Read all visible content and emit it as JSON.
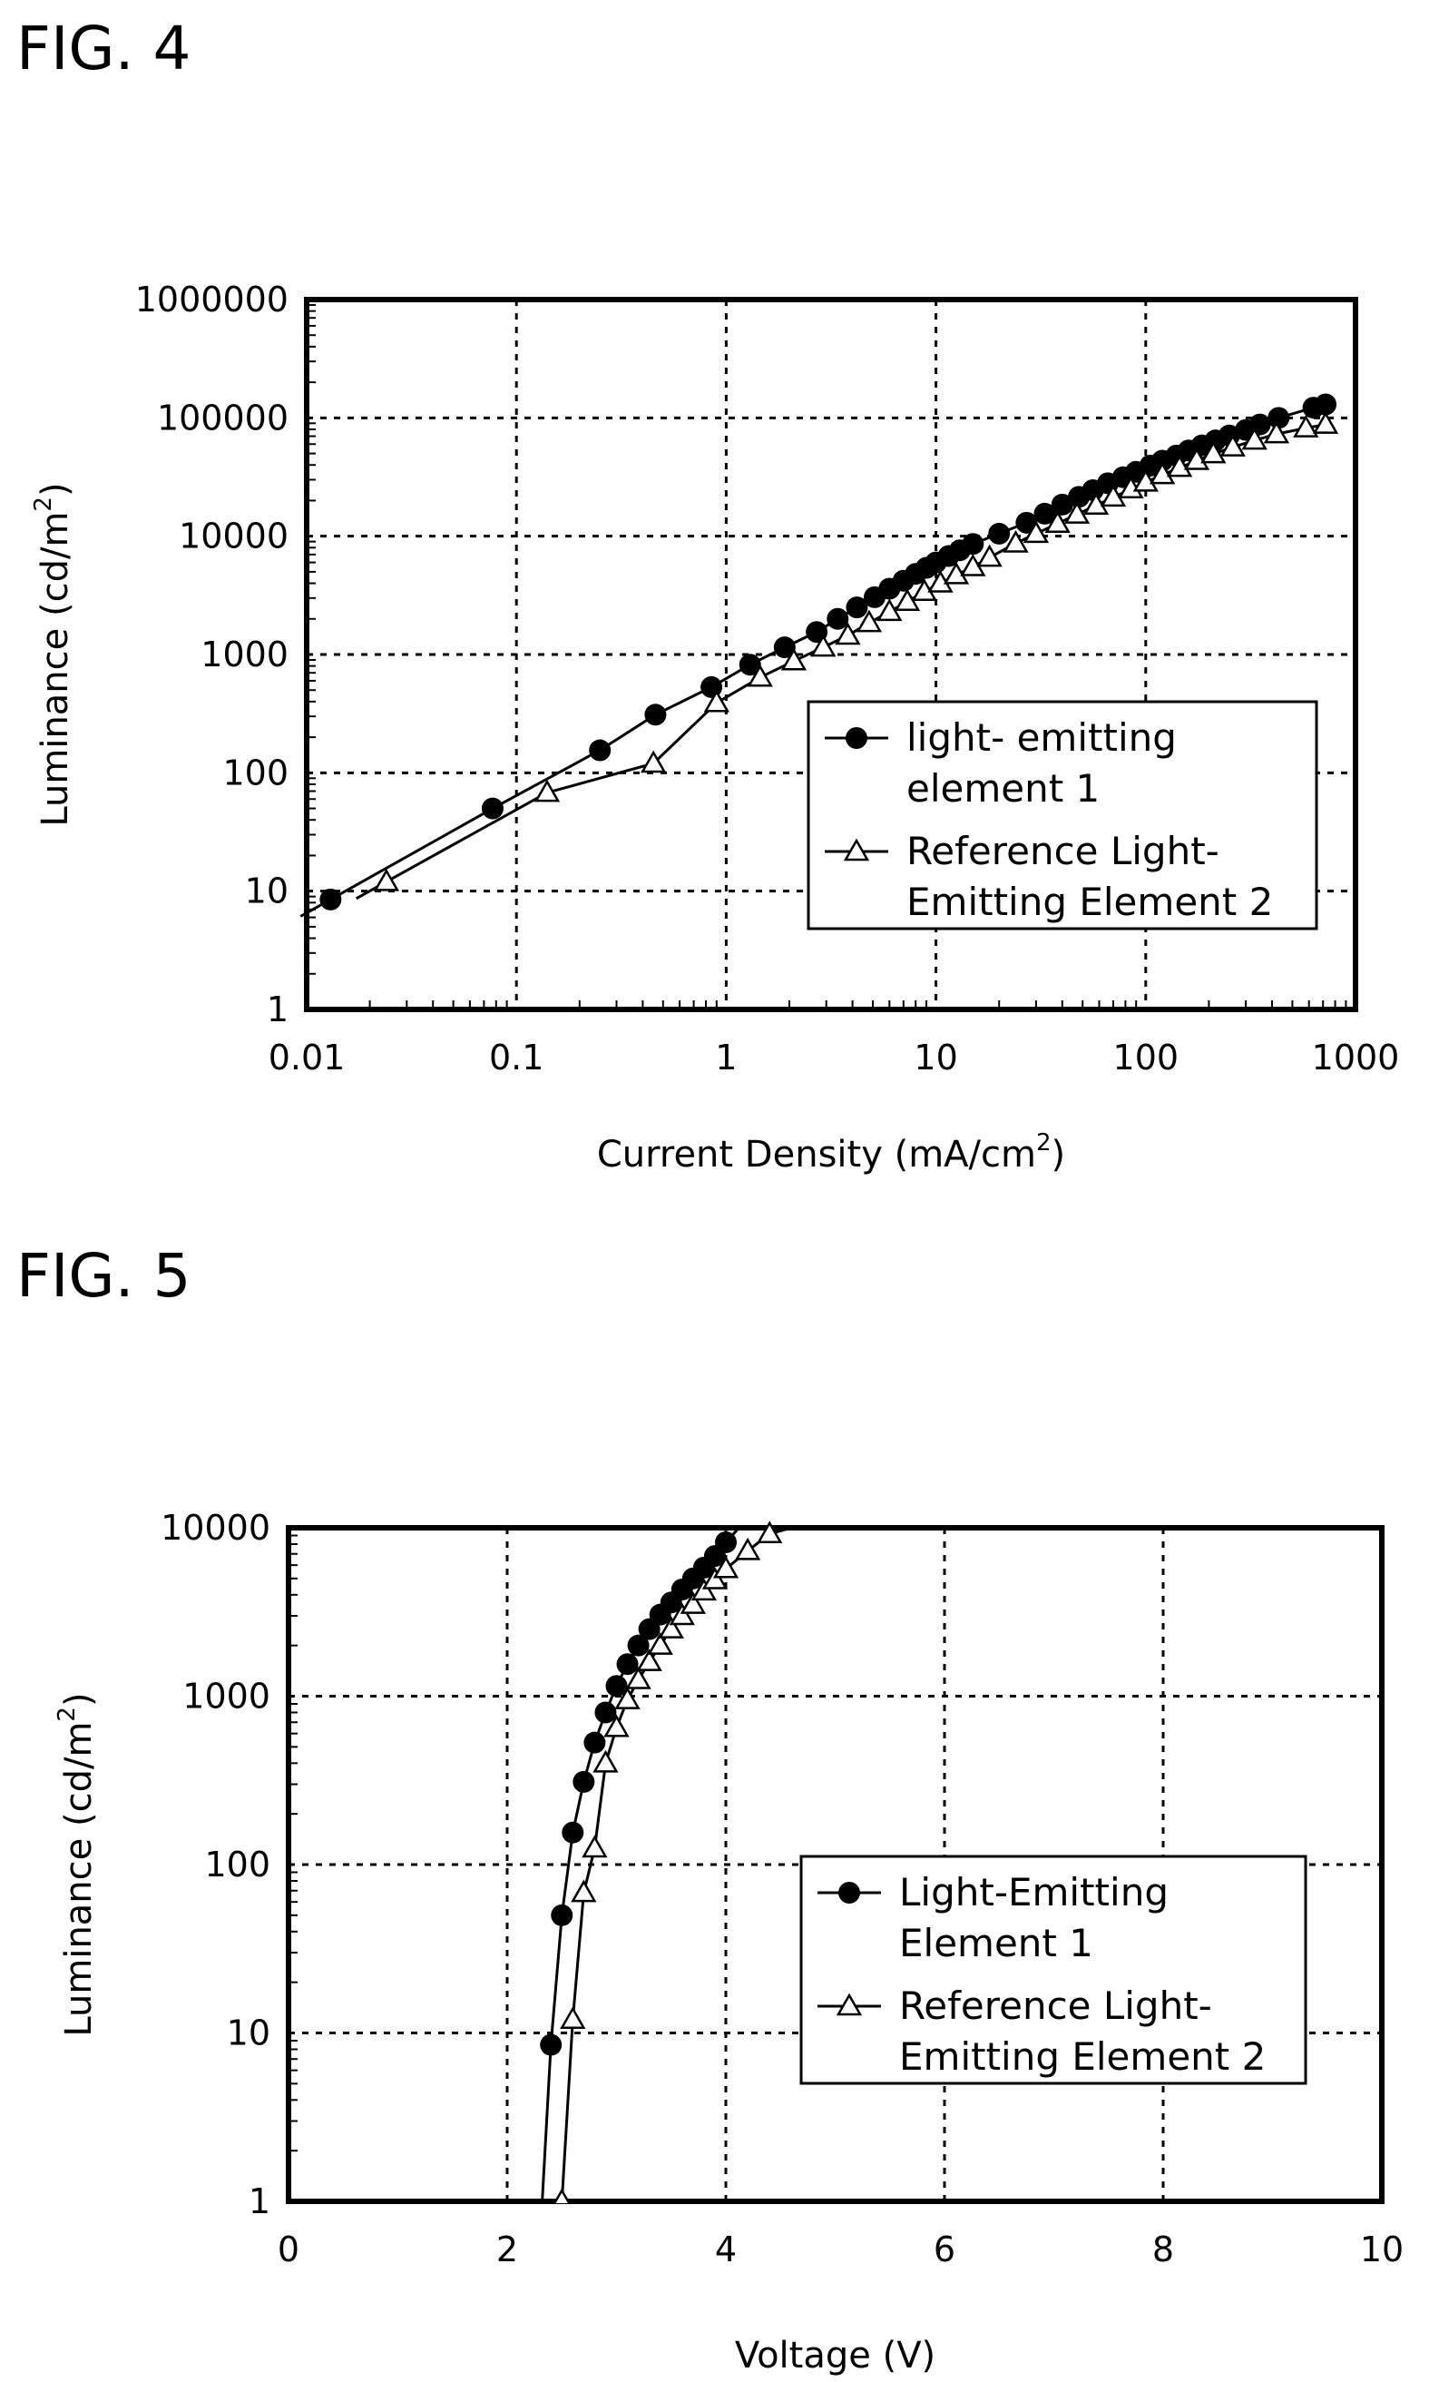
{
  "figures": [
    {
      "label": "FIG. 4",
      "chart_data": {
        "type": "line",
        "title": "",
        "xlabel": "Current Density (mA/cm",
        "xlabel_sup": "2",
        "xlabel_close": ")",
        "ylabel": "Luminance (cd/m",
        "ylabel_sup": "2",
        "ylabel_close": ")",
        "x_scale": "log",
        "y_scale": "log",
        "xlim": [
          0.01,
          1000
        ],
        "ylim": [
          1,
          1000000
        ],
        "x_ticks": [
          "0.01",
          "0.1",
          "1",
          "10",
          "100",
          "1000"
        ],
        "y_ticks": [
          "1",
          "10",
          "100",
          "1000",
          "10000",
          "100000",
          "1000000"
        ],
        "grid": true,
        "legend_position": "bottom-right",
        "series": [
          {
            "name_lines": [
              "light- emitting",
              "element 1"
            ],
            "marker": "filled-circle",
            "x": [
              0.013,
              0.077,
              0.25,
              0.46,
              0.85,
              1.3,
              1.9,
              2.7,
              3.4,
              4.2,
              5.1,
              6.0,
              7.0,
              8.0,
              9.0,
              10.0,
              11.5,
              13.0,
              15.0,
              20.0,
              27.0,
              33.0,
              40.0,
              48.0,
              56.0,
              66.0,
              78.0,
              90.0,
              105.0,
              120.0,
              140.0,
              160.0,
              185.0,
              215.0,
              250.0,
              300.0,
              350.0,
              430.0,
              630.0,
              720.0
            ],
            "y": [
              8.5,
              50.0,
              155.0,
              310.0,
              530.0,
              820.0,
              1150.0,
              1550.0,
              2000.0,
              2500.0,
              3050.0,
              3600.0,
              4200.0,
              4800.0,
              5400.0,
              6000.0,
              6800.0,
              7600.0,
              8600.0,
              10500.0,
              13000.0,
              15500.0,
              18500.0,
              21500.0,
              24500.0,
              28000.0,
              31500.0,
              35000.0,
              39500.0,
              43500.0,
              48000.0,
              53000.0,
              58500.0,
              64500.0,
              71000.0,
              79000.0,
              88000.0,
              100000.0,
              122000.0,
              130000.0
            ]
          },
          {
            "name_lines": [
              "Reference Light-",
              "Emitting Element 2"
            ],
            "marker": "open-triangle",
            "x": [
              0.024,
              0.14,
              0.45,
              0.9,
              1.45,
              2.1,
              2.9,
              3.8,
              4.8,
              6.0,
              7.3,
              8.8,
              10.5,
              12.5,
              15.0,
              18.0,
              24.0,
              30.0,
              38.0,
              47.0,
              58.0,
              70.0,
              85.0,
              100.0,
              120.0,
              145.0,
              175.0,
              210.0,
              260.0,
              330.0,
              420.0,
              580.0,
              720.0
            ],
            "y": [
              12.0,
              68.0,
              120.0,
              390.0,
              640.0,
              880.0,
              1150.0,
              1450.0,
              1850.0,
              2300.0,
              2800.0,
              3400.0,
              4000.0,
              4700.0,
              5500.0,
              6600.0,
              8700.0,
              10500.0,
              12800.0,
              15300.0,
              18200.0,
              21300.0,
              25000.0,
              28500.0,
              33000.0,
              38000.0,
              43500.0,
              49500.0,
              56500.0,
              64500.0,
              73000.0,
              82000.0,
              88000.0
            ]
          }
        ]
      }
    },
    {
      "label": "FIG. 5",
      "chart_data": {
        "type": "line",
        "title": "",
        "xlabel": "Voltage (V)",
        "xlabel_sup": "",
        "xlabel_close": "",
        "ylabel": "Luminance (cd/m",
        "ylabel_sup": "2",
        "ylabel_close": ")",
        "x_scale": "linear",
        "y_scale": "log",
        "xlim": [
          0,
          10
        ],
        "ylim": [
          1,
          10000
        ],
        "x_ticks": [
          "0",
          "2",
          "4",
          "6",
          "8",
          "10"
        ],
        "y_ticks": [
          "1",
          "10",
          "100",
          "1000",
          "10000"
        ],
        "grid": true,
        "legend_position": "bottom-right",
        "series": [
          {
            "name_lines": [
              "Light-Emitting",
              "Element 1"
            ],
            "marker": "filled-circle",
            "x": [
              2.4,
              2.5,
              2.6,
              2.7,
              2.8,
              2.9,
              3.0,
              3.1,
              3.2,
              3.3,
              3.4,
              3.5,
              3.6,
              3.7,
              3.8,
              3.9,
              4.0
            ],
            "y": [
              8.5,
              50.0,
              155.0,
              310.0,
              530.0,
              800.0,
              1150.0,
              1550.0,
              2000.0,
              2500.0,
              3050.0,
              3600.0,
              4300.0,
              5000.0,
              5800.0,
              6800.0,
              8200.0
            ],
            "curve_x": [
              2.32,
              2.4,
              2.5,
              2.6,
              2.7,
              2.8,
              2.9,
              3.0,
              3.1,
              3.2,
              3.3,
              3.4,
              3.5,
              3.6,
              3.7,
              3.8,
              3.9,
              4.0,
              4.12
            ],
            "curve_y": [
              1.0,
              8.5,
              50.0,
              155.0,
              310.0,
              530.0,
              800.0,
              1150.0,
              1550.0,
              2000.0,
              2500.0,
              3050.0,
              3600.0,
              4300.0,
              5000.0,
              5800.0,
              6800.0,
              8200.0,
              10000.0
            ]
          },
          {
            "name_lines": [
              "Reference Light-",
              "Emitting Element 2"
            ],
            "marker": "open-triangle",
            "x": [
              2.5,
              2.6,
              2.7,
              2.8,
              2.9,
              3.0,
              3.1,
              3.2,
              3.3,
              3.4,
              3.5,
              3.6,
              3.7,
              3.8,
              3.9,
              4.0,
              4.2,
              4.4
            ],
            "y": [
              1.0,
              12.0,
              68.0,
              125.0,
              400.0,
              650.0,
              950.0,
              1250.0,
              1600.0,
              2000.0,
              2500.0,
              3000.0,
              3500.0,
              4200.0,
              4900.0,
              5700.0,
              7300.0,
              9200.0
            ],
            "curve_x": [
              2.48,
              2.5,
              2.6,
              2.7,
              2.8,
              2.9,
              3.0,
              3.1,
              3.2,
              3.3,
              3.4,
              3.5,
              3.6,
              3.7,
              3.8,
              3.9,
              4.0,
              4.2,
              4.4,
              4.6
            ],
            "curve_y": [
              1.0,
              1.0,
              12.0,
              68.0,
              125.0,
              400.0,
              650.0,
              950.0,
              1250.0,
              1600.0,
              2000.0,
              2500.0,
              3000.0,
              3500.0,
              4200.0,
              4900.0,
              5700.0,
              7300.0,
              9200.0,
              10000.0
            ]
          }
        ]
      }
    }
  ]
}
